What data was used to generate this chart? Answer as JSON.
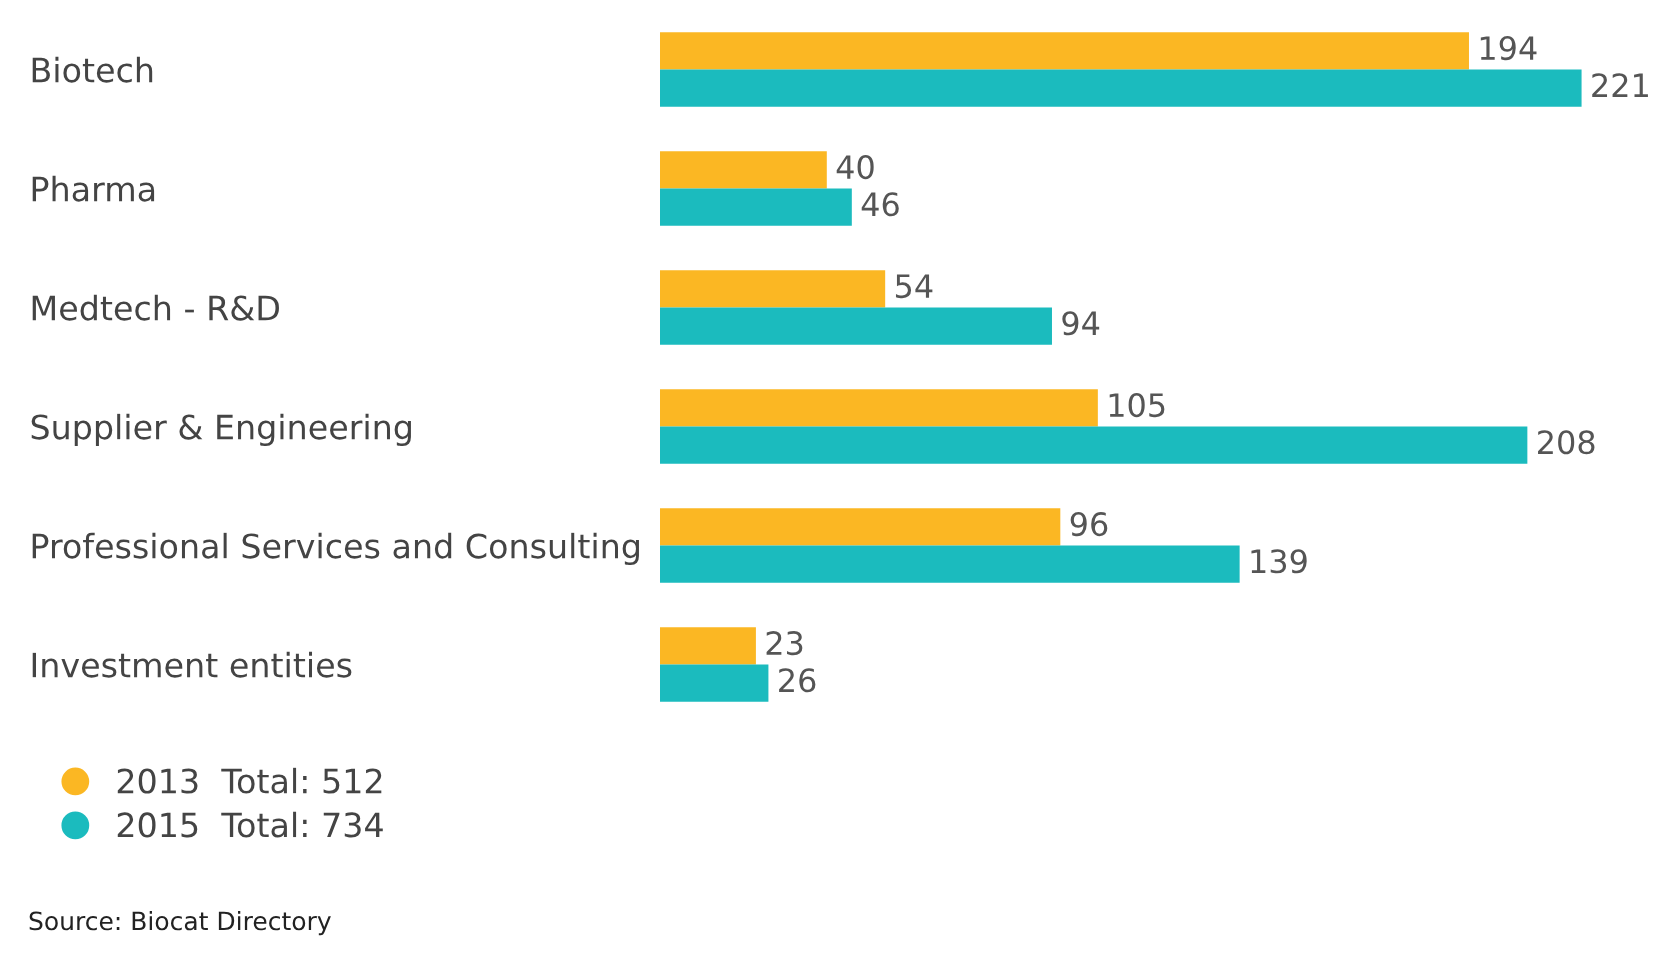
{
  "chart_data": {
    "type": "bar",
    "orientation": "horizontal",
    "categories": [
      "Biotech",
      "Pharma",
      "Medtech - R&D",
      "Supplier & Engineering",
      "Professional Services and Consulting",
      "Investment entities"
    ],
    "series": [
      {
        "name": "2013  Total: 512",
        "color": "#fbb723",
        "values": [
          194,
          40,
          54,
          105,
          96,
          23
        ]
      },
      {
        "name": "2015  Total: 734",
        "color": "#1bbbbe",
        "values": [
          221,
          46,
          94,
          208,
          139,
          26
        ]
      }
    ],
    "data_labels": true,
    "legend": "bottom left",
    "grid": false,
    "tick_labels": "y",
    "annotations": [
      "Source: Biocat Directory"
    ]
  }
}
